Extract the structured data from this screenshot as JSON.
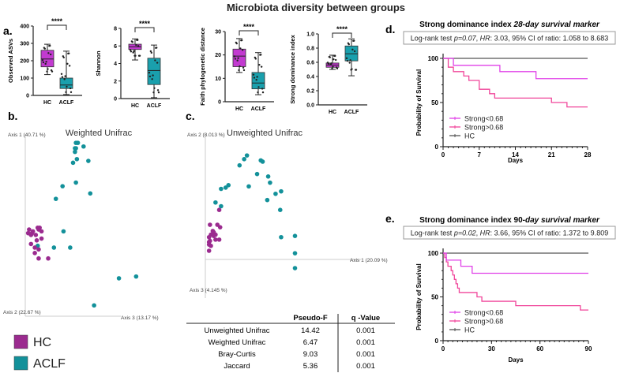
{
  "title": "Microbiota diversity between groups",
  "panel_labels": {
    "a": "a.",
    "b": "b.",
    "c": "c.",
    "d": "d.",
    "e": "e."
  },
  "colors": {
    "HC": "#a020a8",
    "ACLF": "#13919a",
    "HC_box": "#c23ad0",
    "ACLF_box": "#1aa0ad",
    "strong_low": "#e040e8",
    "strong_high": "#f0459a",
    "hc_line": "#555555"
  },
  "legend": [
    {
      "label": "HC",
      "color": "#9b2b8f"
    },
    {
      "label": "ACLF",
      "color": "#13919a"
    }
  ],
  "chart_data": [
    {
      "type": "box",
      "ylabel": "Observed ASVs",
      "ylim": [
        0,
        400
      ],
      "yticks": [
        0,
        100,
        200,
        300,
        400
      ],
      "categories": [
        "HC",
        "ACLF"
      ],
      "significance": "****",
      "series": [
        {
          "name": "HC",
          "min": 120,
          "q1": 165,
          "median": 210,
          "q3": 260,
          "max": 295
        },
        {
          "name": "ACLF",
          "min": 5,
          "q1": 40,
          "median": 60,
          "q3": 100,
          "max": 255
        }
      ]
    },
    {
      "type": "box",
      "ylabel": "Shannon",
      "ylim": [
        0,
        8
      ],
      "yticks": [
        0,
        2,
        4,
        6,
        8
      ],
      "categories": [
        "HC",
        "ACLF"
      ],
      "significance": "****",
      "series": [
        {
          "name": "HC",
          "min": 4.4,
          "q1": 5.6,
          "median": 5.9,
          "q3": 6.2,
          "max": 6.8
        },
        {
          "name": "ACLF",
          "min": 0.1,
          "q1": 1.6,
          "median": 3.2,
          "q3": 4.6,
          "max": 6.1
        }
      ]
    },
    {
      "type": "box",
      "ylabel": "Faith phylogenetic distance",
      "ylim": [
        0,
        30
      ],
      "yticks": [
        0,
        10,
        20,
        30
      ],
      "categories": [
        "HC",
        "ACLF"
      ],
      "significance": "****",
      "series": [
        {
          "name": "HC",
          "min": 12.5,
          "q1": 15,
          "median": 19.5,
          "q3": 22.5,
          "max": 27
        },
        {
          "name": "ACLF",
          "min": 3,
          "q1": 5.5,
          "median": 8,
          "q3": 12.5,
          "max": 21
        }
      ]
    },
    {
      "type": "box",
      "ylabel": "Strong dominance index",
      "ylim": [
        0,
        1
      ],
      "yticks": [
        "0.0",
        "0.2",
        "0.4",
        "0.6",
        "0.8",
        "1.0"
      ],
      "categories": [
        "HC",
        "ACLF"
      ],
      "significance": "****",
      "series": [
        {
          "name": "HC",
          "min": 0.5,
          "q1": 0.53,
          "median": 0.56,
          "q3": 0.59,
          "max": 0.7
        },
        {
          "name": "ACLF",
          "min": 0.41,
          "q1": 0.62,
          "median": 0.72,
          "q3": 0.83,
          "max": 0.93
        }
      ]
    },
    {
      "type": "scatter",
      "title": "Weighted Unifrac",
      "axis_labels": [
        "Axis 1 (40.71 %)",
        "Axis 2 (22.67 %)",
        "Axis 3 (13.17 %)"
      ],
      "series": [
        {
          "name": "ACLF",
          "points": [
            [
              53,
              96
            ],
            [
              55,
              96
            ],
            [
              61,
              94
            ],
            [
              52,
              93
            ],
            [
              53,
              93
            ],
            [
              52,
              91
            ],
            [
              54,
              87
            ],
            [
              50,
              85
            ],
            [
              66,
              86
            ],
            [
              53,
              74
            ],
            [
              39,
              72
            ],
            [
              68,
              68
            ],
            [
              32,
              65
            ],
            [
              40,
              47
            ],
            [
              13,
              39
            ],
            [
              30,
              38
            ],
            [
              47,
              38
            ],
            [
              98,
              21
            ],
            [
              116,
              22
            ],
            [
              72,
              6
            ]
          ]
        },
        {
          "name": "HC",
          "points": [
            [
              4,
              48
            ],
            [
              13,
              49
            ],
            [
              15,
              49
            ],
            [
              14,
              48
            ],
            [
              17,
              47
            ],
            [
              8,
              47
            ],
            [
              3,
              46
            ],
            [
              11,
              45
            ],
            [
              6,
              45
            ],
            [
              17,
              43
            ],
            [
              12,
              42
            ],
            [
              6,
              40
            ],
            [
              10,
              38
            ],
            [
              14,
              37
            ],
            [
              10,
              35
            ],
            [
              14,
              32
            ],
            [
              24,
              32
            ],
            [
              7,
              46
            ]
          ]
        }
      ]
    },
    {
      "type": "scatter",
      "title": "Unweighted Unifrac",
      "axis_labels": [
        "Axis 2 (8.013 %)",
        "Axis 1 (20.09 %)",
        "Axis 3 (4.145 %)"
      ],
      "series": [
        {
          "name": "ACLF",
          "points": [
            [
              37,
              76
            ],
            [
              42,
              81
            ],
            [
              45,
              84
            ],
            [
              60,
              80
            ],
            [
              62,
              79
            ],
            [
              56,
              69
            ],
            [
              17,
              57
            ],
            [
              22,
              58
            ],
            [
              25,
              60
            ],
            [
              47,
              59
            ],
            [
              68,
              67
            ],
            [
              70,
              62
            ],
            [
              76,
              53
            ],
            [
              82,
              55
            ],
            [
              67,
              48
            ],
            [
              11,
              46
            ],
            [
              17,
              43
            ],
            [
              81,
              40
            ],
            [
              82,
              18
            ],
            [
              97,
              19
            ],
            [
              97,
              5
            ],
            [
              97,
              -7
            ]
          ]
        },
        {
          "name": "HC",
          "points": [
            [
              15,
              40
            ],
            [
              5,
              28
            ],
            [
              13,
              28
            ],
            [
              16,
              26
            ],
            [
              8,
              23
            ],
            [
              9,
              22
            ],
            [
              6,
              20
            ],
            [
              11,
              20
            ],
            [
              9,
              19
            ],
            [
              4,
              18
            ],
            [
              11,
              16
            ],
            [
              15,
              16
            ],
            [
              4,
              14
            ],
            [
              6,
              11
            ],
            [
              4,
              12
            ],
            [
              4,
              7
            ],
            [
              5,
              15
            ]
          ]
        }
      ]
    },
    {
      "type": "table",
      "columns": [
        "",
        "Pseudo-F",
        "q -Value"
      ],
      "rows": [
        [
          "Unweighted Unifrac",
          "14.42",
          "0.001"
        ],
        [
          "Weighted Unifrac",
          "6.47",
          "0.001"
        ],
        [
          "Bray-Curtis",
          "9.03",
          "0.001"
        ],
        [
          "Jaccard",
          "5.36",
          "0.001"
        ]
      ]
    },
    {
      "type": "line",
      "title_plain": "Strong dominance index ",
      "title_italic": "28-day survival marker",
      "stats": {
        "prefix": "Log-rank test ",
        "p": "p=0.07",
        "hr_label": "HR",
        "rest": ": 3.03, 95% CI of ratio: 1.058 to 8.683"
      },
      "xlabel": "Days",
      "ylabel": "Probability of Survival",
      "xlim": [
        0,
        28
      ],
      "ylim": [
        0,
        100
      ],
      "xticks": [
        0,
        7,
        14,
        21,
        28
      ],
      "yticks": [
        0,
        50,
        100
      ],
      "series": [
        {
          "name": "Strong<0.68",
          "steps": [
            [
              0,
              100
            ],
            [
              2,
              92
            ],
            [
              11,
              85
            ],
            [
              18,
              77
            ],
            [
              28,
              77
            ]
          ]
        },
        {
          "name": "Strong>0.68",
          "steps": [
            [
              0,
              100
            ],
            [
              1,
              90
            ],
            [
              2,
              85
            ],
            [
              4,
              80
            ],
            [
              5,
              75
            ],
            [
              7,
              65
            ],
            [
              9,
              60
            ],
            [
              10,
              55
            ],
            [
              21,
              50
            ],
            [
              24,
              45
            ],
            [
              28,
              45
            ]
          ]
        },
        {
          "name": "HC",
          "steps": [
            [
              0,
              100
            ],
            [
              28,
              100
            ]
          ]
        }
      ]
    },
    {
      "type": "line",
      "title_plain": "Strong dominance index 90-",
      "title_italic": "day survival marker",
      "stats": {
        "prefix": "Log-rank test ",
        "p": "p=0.02",
        "hr_label": "HR",
        "rest": ": 3.66, 95% CI of ratio: 1.372 to 9.809"
      },
      "xlabel": "Days",
      "ylabel": "Probability of Survival",
      "xlim": [
        0,
        90
      ],
      "ylim": [
        0,
        100
      ],
      "xticks": [
        0,
        30,
        60,
        90
      ],
      "yticks": [
        0,
        50,
        100
      ],
      "series": [
        {
          "name": "Strong<0.68",
          "steps": [
            [
              0,
              100
            ],
            [
              2,
              92
            ],
            [
              11,
              85
            ],
            [
              18,
              77
            ],
            [
              90,
              77
            ]
          ]
        },
        {
          "name": "Strong>0.68",
          "steps": [
            [
              0,
              100
            ],
            [
              1,
              95
            ],
            [
              2,
              90
            ],
            [
              3,
              85
            ],
            [
              5,
              80
            ],
            [
              6,
              75
            ],
            [
              7,
              70
            ],
            [
              8,
              65
            ],
            [
              9,
              60
            ],
            [
              10,
              55
            ],
            [
              21,
              50
            ],
            [
              24,
              45
            ],
            [
              45,
              40
            ],
            [
              85,
              35
            ],
            [
              90,
              35
            ]
          ]
        },
        {
          "name": "HC",
          "steps": [
            [
              0,
              100
            ],
            [
              90,
              100
            ]
          ]
        }
      ]
    }
  ]
}
